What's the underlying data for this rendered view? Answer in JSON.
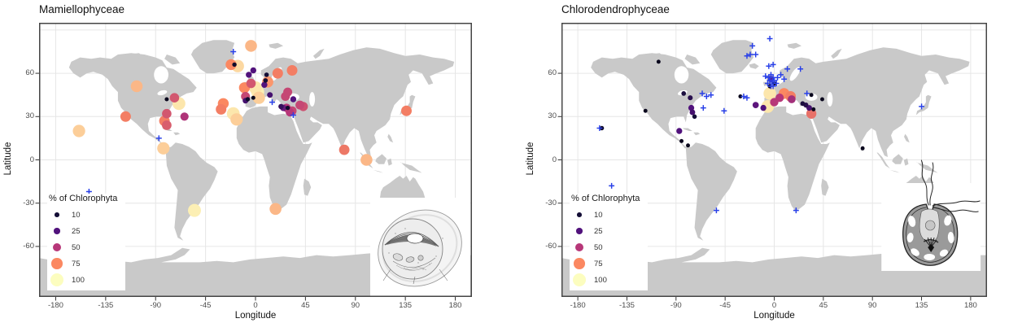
{
  "figure": {
    "background": "#ffffff"
  },
  "colors": {
    "land": "#c9c9c9",
    "gridline": "#e6e6e6",
    "panel_border": "#454545",
    "cross": "#2940e8",
    "tick_text": "#4d4d4d",
    "scale_name": "magma",
    "scale_stops": {
      "0": "#000004",
      "10": "#140e36",
      "25": "#51127c",
      "50": "#b73779",
      "75": "#fb8861",
      "100": "#fcfdbf"
    }
  },
  "chart_data": [
    {
      "type": "scatter",
      "subtype": "world-map-bubble",
      "title": "Mamiellophyceae",
      "xlabel": "Longitude",
      "ylabel": "Latitude",
      "xlim": [
        -195,
        195
      ],
      "ylim": [
        -95,
        95
      ],
      "x_ticks": [
        -180,
        -135,
        -90,
        -45,
        0,
        45,
        90,
        135,
        180
      ],
      "y_ticks": [
        60,
        30,
        0,
        -30,
        -60
      ],
      "grid": true,
      "legend": {
        "title": "% of Chlorophyta",
        "values": [
          10,
          25,
          50,
          75,
          100
        ],
        "position": "inside-bottom-left"
      },
      "inset": "ostreococcus-like-cell-drawing",
      "point_columns": [
        "longitude",
        "latitude",
        "pct_of_chlorophyta"
      ],
      "series": [
        {
          "name": "% of Chlorophyta (bubbles)",
          "marker": "circle",
          "points": [
            [
              -159,
              20,
              90
            ],
            [
              -117,
              30,
              72
            ],
            [
              -107,
              51,
              85
            ],
            [
              -80,
              42,
              5
            ],
            [
              -73,
              43,
              60
            ],
            [
              -69,
              39,
              95
            ],
            [
              -80,
              32,
              60
            ],
            [
              -82,
              27,
              72
            ],
            [
              -64,
              30,
              48
            ],
            [
              -80,
              24,
              62
            ],
            [
              -83,
              8,
              90
            ],
            [
              -55,
              -35,
              97
            ],
            [
              18,
              -34,
              85
            ],
            [
              -29,
              39,
              75
            ],
            [
              -31,
              35,
              72
            ],
            [
              -20,
              32,
              95
            ],
            [
              -17,
              28,
              90
            ],
            [
              -4,
              79,
              85
            ],
            [
              -22,
              66,
              75
            ],
            [
              -19,
              66,
              8
            ],
            [
              -16,
              65,
              92
            ],
            [
              -6,
              59,
              25
            ],
            [
              10,
              59,
              10
            ],
            [
              20,
              60,
              72
            ],
            [
              33,
              62,
              72
            ],
            [
              -2,
              62,
              25
            ],
            [
              9,
              55,
              10
            ],
            [
              -4,
              53,
              60
            ],
            [
              -10,
              50,
              75
            ],
            [
              0,
              50,
              95
            ],
            [
              2,
              47,
              97
            ],
            [
              -9,
              44,
              55
            ],
            [
              -9,
              41,
              22
            ],
            [
              -7,
              42,
              8
            ],
            [
              3,
              43,
              90
            ],
            [
              -2,
              43,
              5
            ],
            [
              11,
              54,
              78
            ],
            [
              8,
              52,
              25
            ],
            [
              13,
              45,
              22
            ],
            [
              27,
              44,
              55
            ],
            [
              29,
              47,
              55
            ],
            [
              23,
              37,
              18
            ],
            [
              25,
              36,
              30
            ],
            [
              29,
              36,
              8
            ],
            [
              28,
              36,
              50
            ],
            [
              31,
              33,
              50
            ],
            [
              33,
              34,
              55
            ],
            [
              34,
              42,
              25
            ],
            [
              40,
              38,
              55
            ],
            [
              43,
              37,
              58
            ],
            [
              136,
              34,
              72
            ],
            [
              80,
              7,
              70
            ],
            [
              100,
              0,
              85
            ]
          ]
        },
        {
          "name": "presence (blue cross)",
          "marker": "plus",
          "points": [
            [
              -20,
              75
            ],
            [
              -87,
              15
            ],
            [
              -150,
              -22
            ],
            [
              15,
              40
            ],
            [
              34,
              31
            ]
          ]
        }
      ]
    },
    {
      "type": "scatter",
      "subtype": "world-map-bubble",
      "title": "Chlorodendrophyceae",
      "xlabel": "Longitude",
      "ylabel": "Latitude",
      "xlim": [
        -195,
        195
      ],
      "ylim": [
        -95,
        95
      ],
      "x_ticks": [
        -180,
        -135,
        -90,
        -45,
        0,
        45,
        90,
        135,
        180
      ],
      "y_ticks": [
        60,
        30,
        0,
        -30,
        -60
      ],
      "grid": true,
      "legend": {
        "title": "% of Chlorophyta",
        "values": [
          10,
          25,
          50,
          75,
          100
        ],
        "position": "inside-bottom-left"
      },
      "inset": "tetraselmis-like-cell-drawing",
      "point_columns": [
        "longitude",
        "latitude",
        "pct_of_chlorophyta"
      ],
      "series": [
        {
          "name": "% of Chlorophyta (bubbles)",
          "marker": "circle",
          "points": [
            [
              -106,
              68,
              5
            ],
            [
              -118,
              34,
              5
            ],
            [
              -158,
              22,
              8
            ],
            [
              -83,
              46,
              12
            ],
            [
              -77,
              43,
              15
            ],
            [
              -76,
              36,
              25
            ],
            [
              -75,
              33,
              22
            ],
            [
              -73,
              30,
              10
            ],
            [
              -87,
              20,
              25
            ],
            [
              -85,
              13,
              5
            ],
            [
              -79,
              10,
              5
            ],
            [
              -31,
              44,
              5
            ],
            [
              -17,
              38,
              28
            ],
            [
              -10,
              36,
              25
            ],
            [
              -6,
              37,
              95
            ],
            [
              0,
              40,
              50
            ],
            [
              -4,
              46,
              95
            ],
            [
              -3,
              56,
              28
            ],
            [
              0,
              53,
              6
            ],
            [
              -4,
              51,
              6
            ],
            [
              9,
              46,
              75
            ],
            [
              15,
              44,
              72
            ],
            [
              5,
              43,
              50
            ],
            [
              16,
              42,
              45
            ],
            [
              26,
              39,
              12
            ],
            [
              29,
              38,
              15
            ],
            [
              32,
              36,
              22
            ],
            [
              34,
              32,
              68
            ],
            [
              36,
              35,
              5
            ],
            [
              34,
              45,
              5
            ],
            [
              44,
              42,
              5
            ],
            [
              81,
              8,
              5
            ]
          ]
        },
        {
          "name": "presence (blue cross)",
          "marker": "plus",
          "points": [
            [
              -4,
              84
            ],
            [
              -20,
              79
            ],
            [
              -22,
              73
            ],
            [
              -17,
              73
            ],
            [
              -25,
              72
            ],
            [
              -5,
              65
            ],
            [
              -1,
              66
            ],
            [
              12,
              63
            ],
            [
              24,
              63
            ],
            [
              -8,
              58
            ],
            [
              -3,
              59
            ],
            [
              -5,
              57
            ],
            [
              -1,
              57
            ],
            [
              3,
              57
            ],
            [
              6,
              59
            ],
            [
              -4,
              55
            ],
            [
              0,
              55
            ],
            [
              -2,
              54
            ],
            [
              2,
              53
            ],
            [
              -6,
              53
            ],
            [
              -1,
              51
            ],
            [
              -3,
              51
            ],
            [
              9,
              56
            ],
            [
              -28,
              44
            ],
            [
              -25,
              43
            ],
            [
              -66,
              46
            ],
            [
              -62,
              44
            ],
            [
              -58,
              45
            ],
            [
              -65,
              36
            ],
            [
              -46,
              34
            ],
            [
              -160,
              22
            ],
            [
              -149,
              -18
            ],
            [
              -53,
              -35
            ],
            [
              20,
              -35
            ],
            [
              135,
              37
            ],
            [
              30,
              46
            ]
          ]
        }
      ]
    }
  ]
}
